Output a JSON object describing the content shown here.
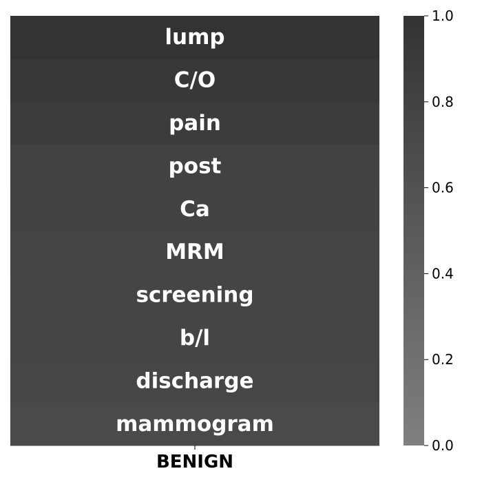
{
  "chart_data": {
    "type": "heatmap",
    "title": "",
    "xlabel": "",
    "ylabel": "",
    "columns": [
      "BENIGN"
    ],
    "rows": [
      "lump",
      "C/O",
      "pain",
      "post",
      "Ca",
      "MRM",
      "screening",
      "b/l",
      "discharge",
      "mammogram"
    ],
    "values": [
      [
        1.0
      ],
      [
        0.93
      ],
      [
        0.88
      ],
      [
        0.8
      ],
      [
        0.79
      ],
      [
        0.78
      ],
      [
        0.77
      ],
      [
        0.76
      ],
      [
        0.75
      ],
      [
        0.7
      ]
    ],
    "colorbar": {
      "range": [
        0,
        1
      ],
      "ticks": [
        "0.0",
        "0.2",
        "0.4",
        "0.6",
        "0.8",
        "1.0"
      ],
      "color_low": "#808080",
      "color_high": "#333333"
    },
    "cell_text_color": "#ffffff",
    "grid": false
  }
}
